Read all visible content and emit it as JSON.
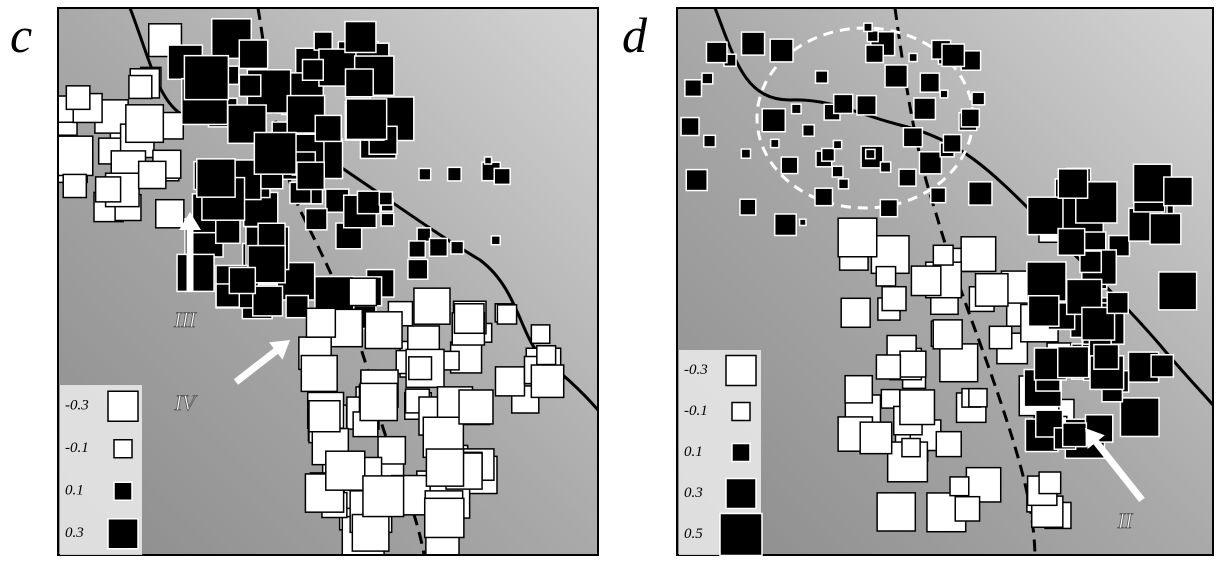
{
  "panels": [
    {
      "label": "c",
      "legend": [
        -0.3,
        -0.1,
        0.1,
        0.3
      ],
      "annotations": [
        "III",
        "IV"
      ]
    },
    {
      "label": "d",
      "legend": [
        -0.3,
        -0.1,
        0.1,
        0.3,
        0.5
      ],
      "annotations": [
        "II"
      ]
    }
  ]
}
